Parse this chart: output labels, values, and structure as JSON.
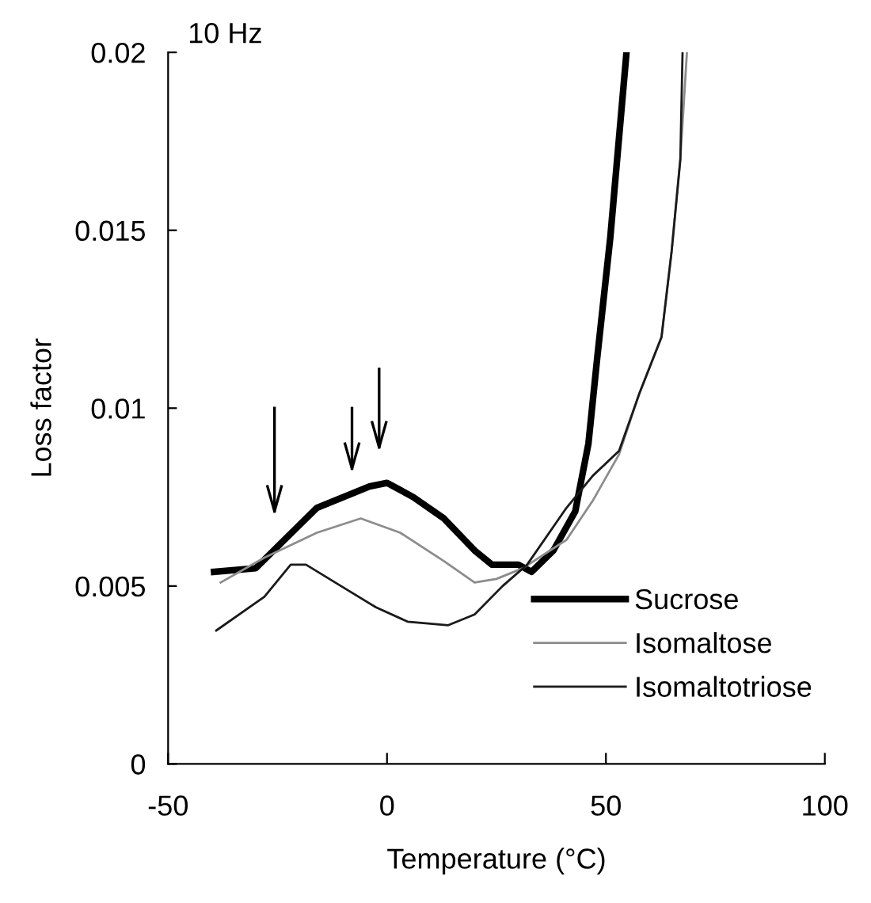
{
  "chart_data": {
    "type": "line",
    "xlabel": "Temperature (°C)",
    "ylabel": "Loss factor",
    "annotations": [
      "10 Hz"
    ],
    "xlim": [
      -50,
      100
    ],
    "ylim": [
      0,
      0.02
    ],
    "xticks": [
      {
        "value": -50,
        "label": "-50"
      },
      0,
      50,
      100
    ],
    "yticks": [
      0,
      0.005,
      0.01,
      0.015,
      0.02
    ],
    "grid": false,
    "legend": "bottom right",
    "marker": "none",
    "line_style": "solid",
    "series": [
      {
        "name": "Sucrose",
        "color": "#000000",
        "x": [
          -39.5,
          -30,
          -16,
          -4,
          0,
          6,
          13,
          20,
          24,
          30,
          33,
          38,
          43,
          46,
          48,
          51,
          54.7
        ],
        "values": [
          0.0054,
          0.0055,
          0.0072,
          0.0078,
          0.0079,
          0.0075,
          0.0069,
          0.006,
          0.0056,
          0.0056,
          0.0054,
          0.006,
          0.0071,
          0.009,
          0.0114,
          0.0148,
          0.02
        ]
      },
      {
        "name": "Isomaltose",
        "color": "#8c8c8c",
        "x": [
          -38,
          -28,
          -16,
          -6,
          3,
          13,
          20,
          25,
          31,
          41,
          47,
          53,
          57.6,
          62.7,
          65,
          67,
          68.5
        ],
        "values": [
          0.0051,
          0.0058,
          0.0065,
          0.0069,
          0.0065,
          0.0057,
          0.0051,
          0.0052,
          0.0055,
          0.0063,
          0.0074,
          0.0087,
          0.0104,
          0.012,
          0.0144,
          0.017,
          0.02
        ]
      },
      {
        "name": "Isomaltotriose",
        "color": "#1a1a1a",
        "x": [
          -39,
          -28,
          -22,
          -18.5,
          -10.5,
          -2.5,
          4.7,
          14,
          20,
          26.4,
          32,
          41,
          47,
          53,
          57.6,
          62.7,
          65,
          67,
          67.5
        ],
        "values": [
          0.00375,
          0.0047,
          0.0056,
          0.0056,
          0.005,
          0.0044,
          0.004,
          0.0039,
          0.0042,
          0.005,
          0.0056,
          0.0072,
          0.0081,
          0.0088,
          0.0104,
          0.012,
          0.0144,
          0.017,
          0.02
        ]
      }
    ]
  }
}
